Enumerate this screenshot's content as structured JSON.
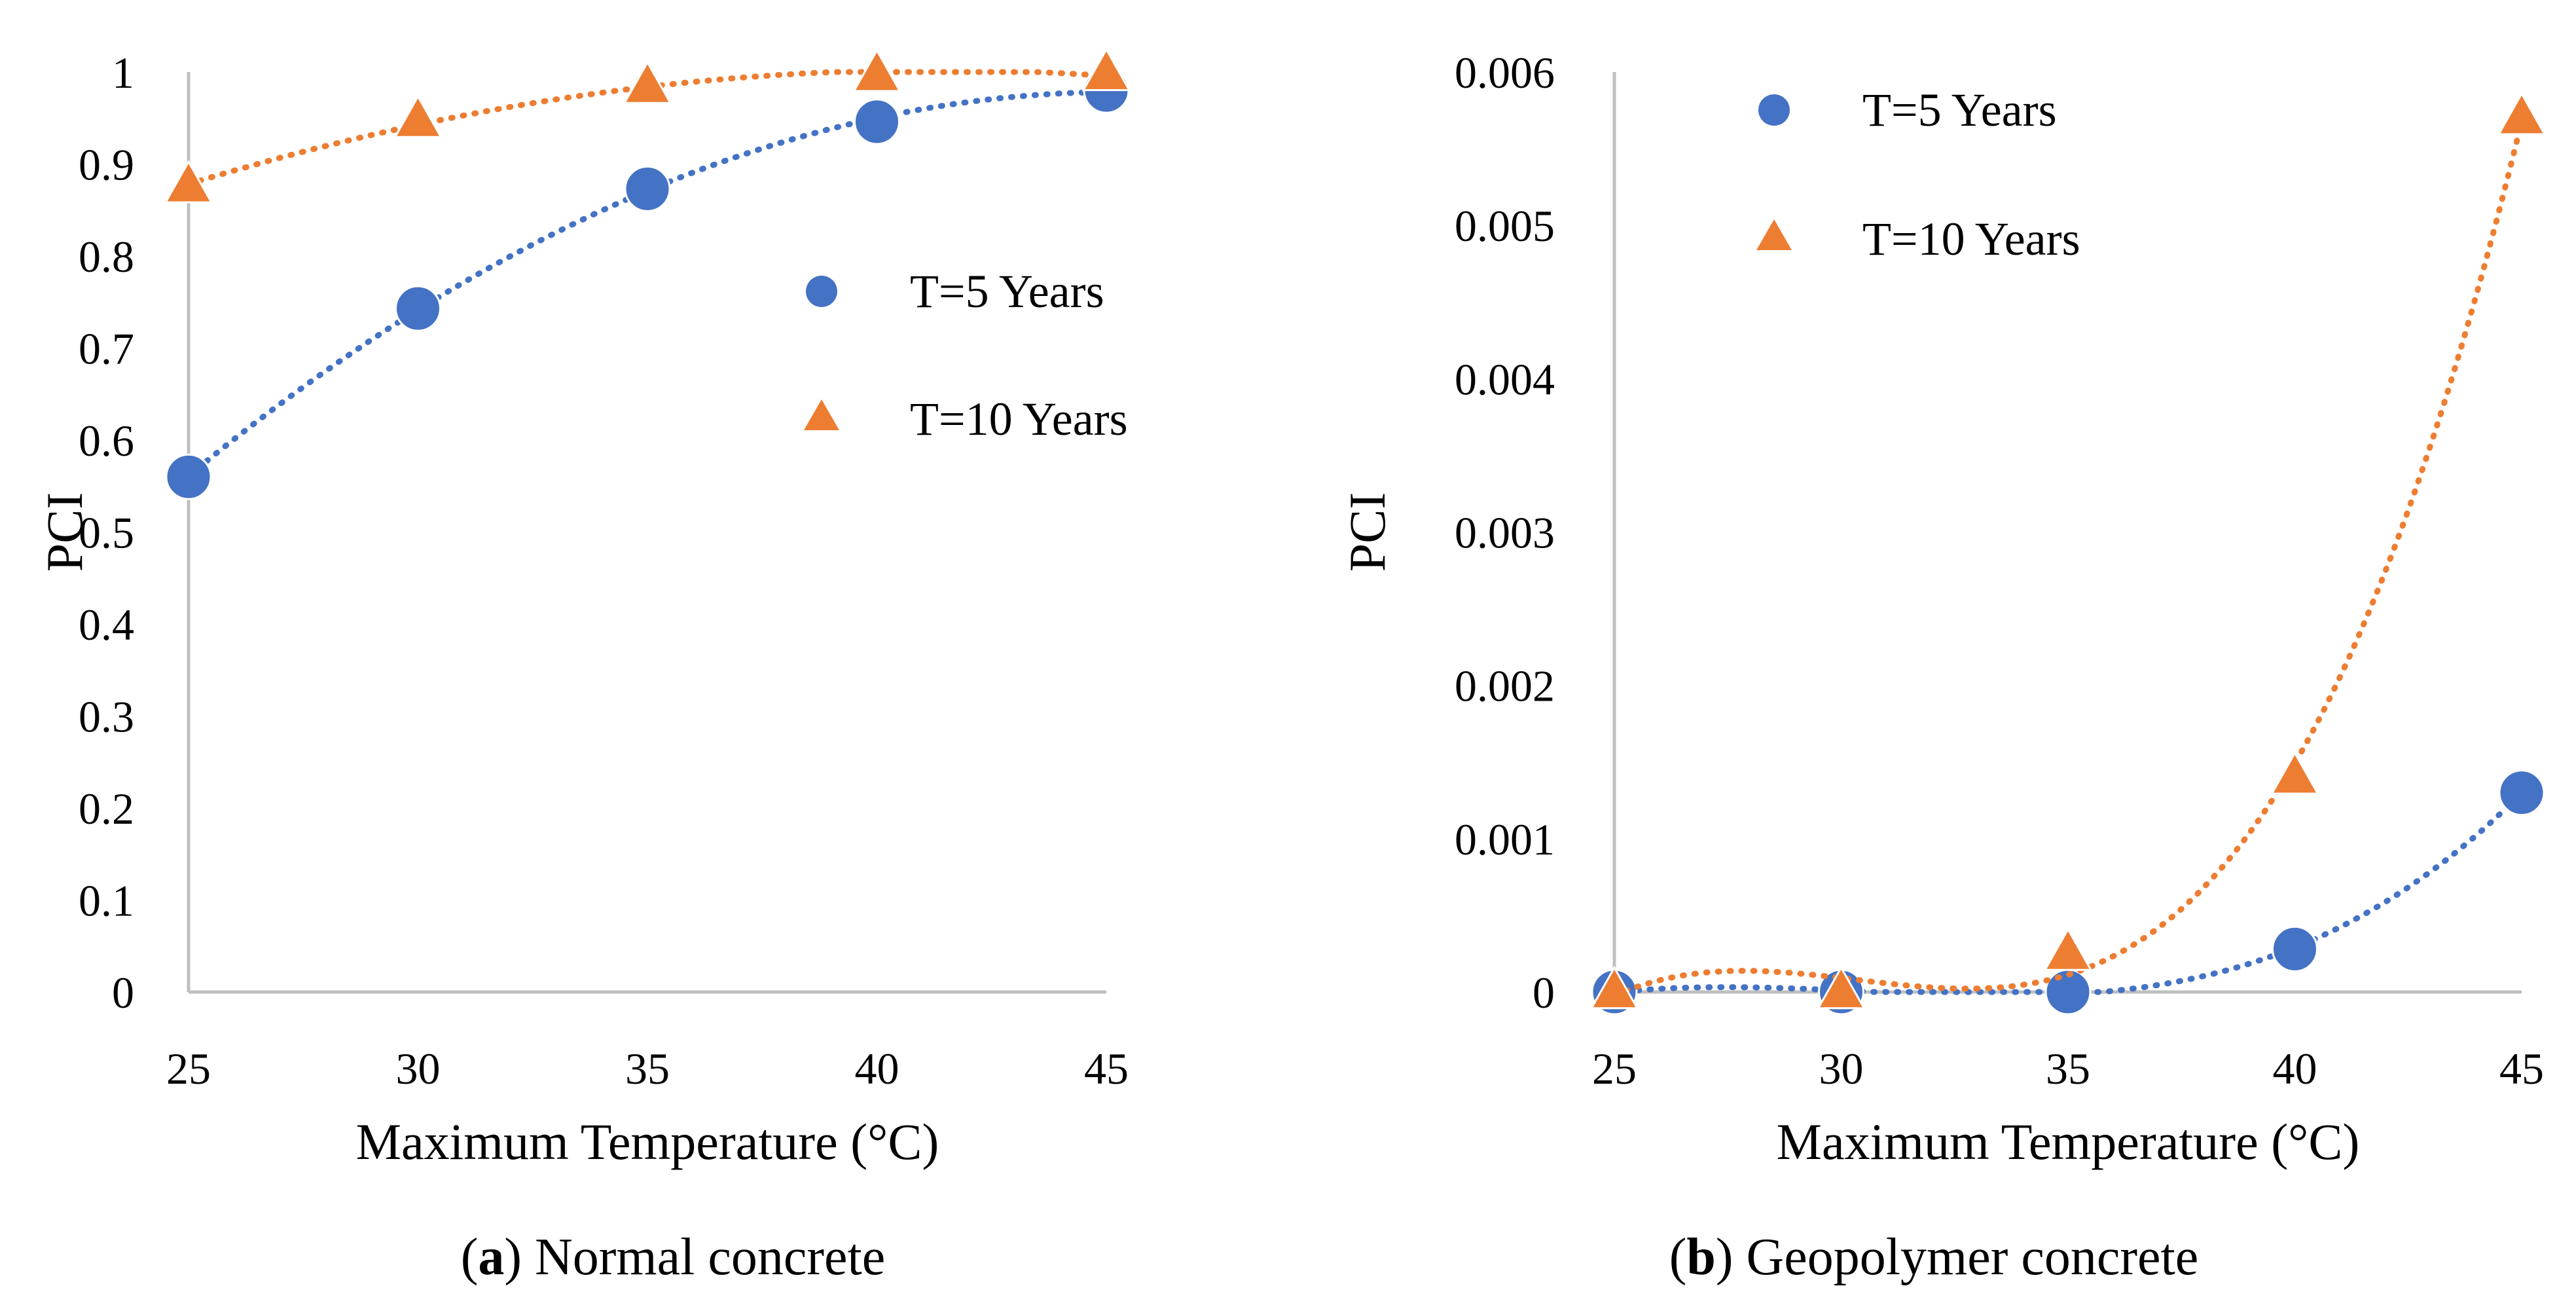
{
  "figure": {
    "captions": [
      {
        "letter": "a",
        "rest": ") Normal concrete",
        "open": "("
      },
      {
        "letter": "b",
        "rest": ") Geopolymer concrete",
        "open": "("
      }
    ]
  },
  "colors": {
    "t5": "#4472C4",
    "t10": "#ED7D31",
    "axis": "#bfbfbf"
  },
  "chart_data": [
    {
      "type": "scatter",
      "xlabel": "Maximum Temperature (°C)",
      "ylabel": "PCI",
      "xlim": [
        25,
        45
      ],
      "ylim": [
        0,
        1
      ],
      "xticks": [
        "25",
        "30",
        "35",
        "40",
        "45"
      ],
      "yticks": [
        "0",
        "0.1",
        "0.2",
        "0.3",
        "0.4",
        "0.5",
        "0.6",
        "0.7",
        "0.8",
        "0.9",
        "1"
      ],
      "legend_position": "right",
      "trendlines": "dotted polynomial",
      "series": [
        {
          "name": "T=5 Years",
          "marker": "circle",
          "x": [
            25,
            30,
            35,
            40,
            45
          ],
          "y": [
            0.56,
            0.743,
            0.873,
            0.946,
            0.98
          ]
        },
        {
          "name": "T=10 Years",
          "marker": "triangle",
          "x": [
            25,
            30,
            35,
            40,
            45
          ],
          "y": [
            0.876,
            0.947,
            0.984,
            0.997,
            0.998
          ]
        }
      ]
    },
    {
      "type": "scatter",
      "xlabel": "Maximum Temperature (°C)",
      "ylabel": "PCI",
      "xlim": [
        25,
        45
      ],
      "ylim": [
        0,
        0.006
      ],
      "xticks": [
        "25",
        "30",
        "35",
        "40",
        "45"
      ],
      "yticks": [
        "0",
        "0.001",
        "0.002",
        "0.003",
        "0.004",
        "0.005",
        "0.006"
      ],
      "legend_position": "top-left",
      "trendlines": "dotted polynomial",
      "series": [
        {
          "name": "T=5 Years",
          "marker": "circle",
          "x": [
            25,
            30,
            35,
            40,
            45
          ],
          "y": [
            0.0,
            0.0,
            0.0,
            0.00028,
            0.0013
          ]
        },
        {
          "name": "T=10 Years",
          "marker": "triangle",
          "x": [
            25,
            30,
            35,
            40,
            45
          ],
          "y": [
            0.0,
            0.0,
            0.00025,
            0.0014,
            0.0057
          ]
        }
      ]
    }
  ]
}
